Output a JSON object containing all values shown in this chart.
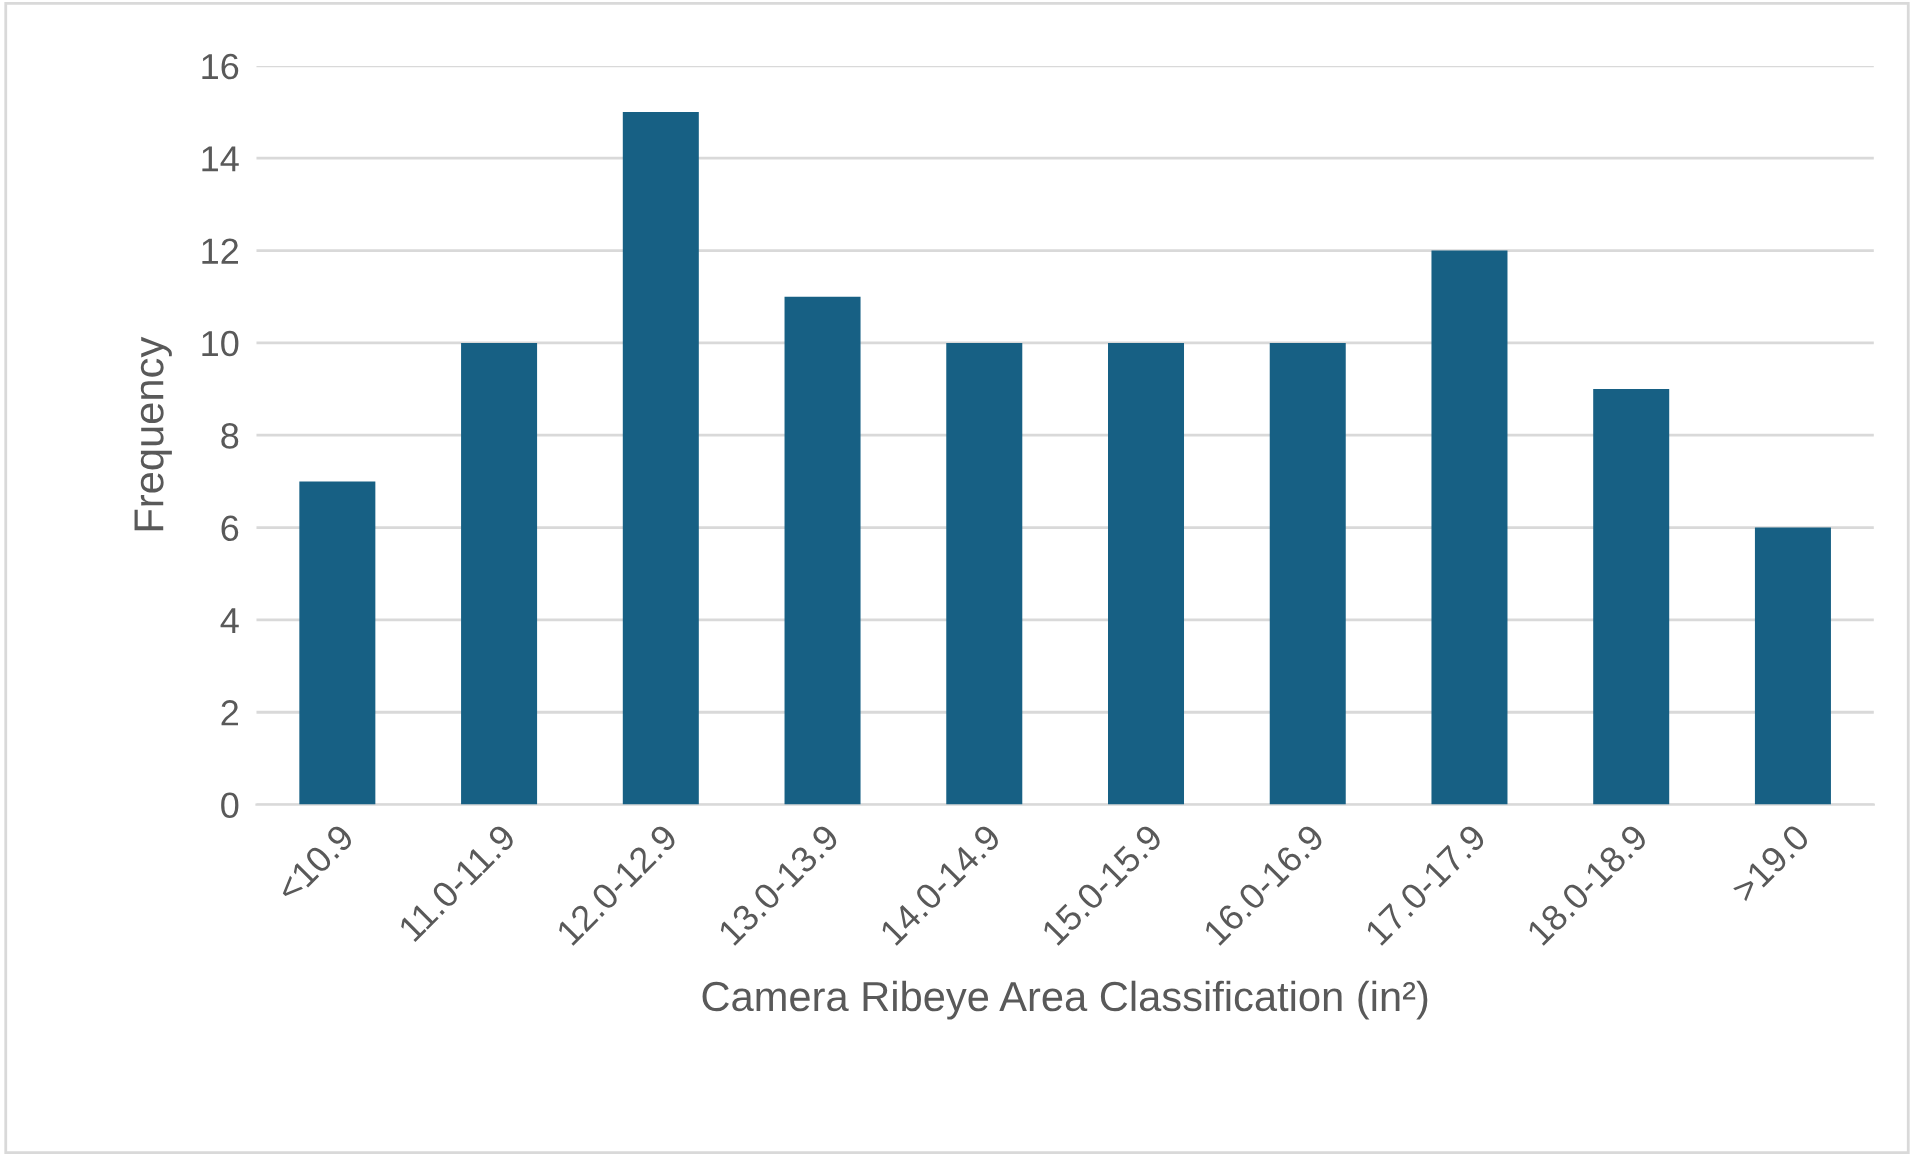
{
  "chart_data": {
    "type": "bar",
    "categories": [
      "<10.9",
      "11.0-11.9",
      "12.0-12.9",
      "13.0-13.9",
      "14.0-14.9",
      "15.0-15.9",
      "16.0-16.9",
      "17.0-17.9",
      "18.0-18.9",
      ">19.0"
    ],
    "values": [
      7,
      10,
      15,
      11,
      10,
      10,
      10,
      12,
      9,
      6
    ],
    "color": "#176084",
    "xlabel": "Camera Ribeye Area Classification (in²)",
    "ylabel": "Frequency",
    "ylim": [
      0,
      16
    ],
    "yticks": [
      0,
      2,
      4,
      6,
      8,
      10,
      12,
      14,
      16
    ],
    "grid": "y"
  }
}
